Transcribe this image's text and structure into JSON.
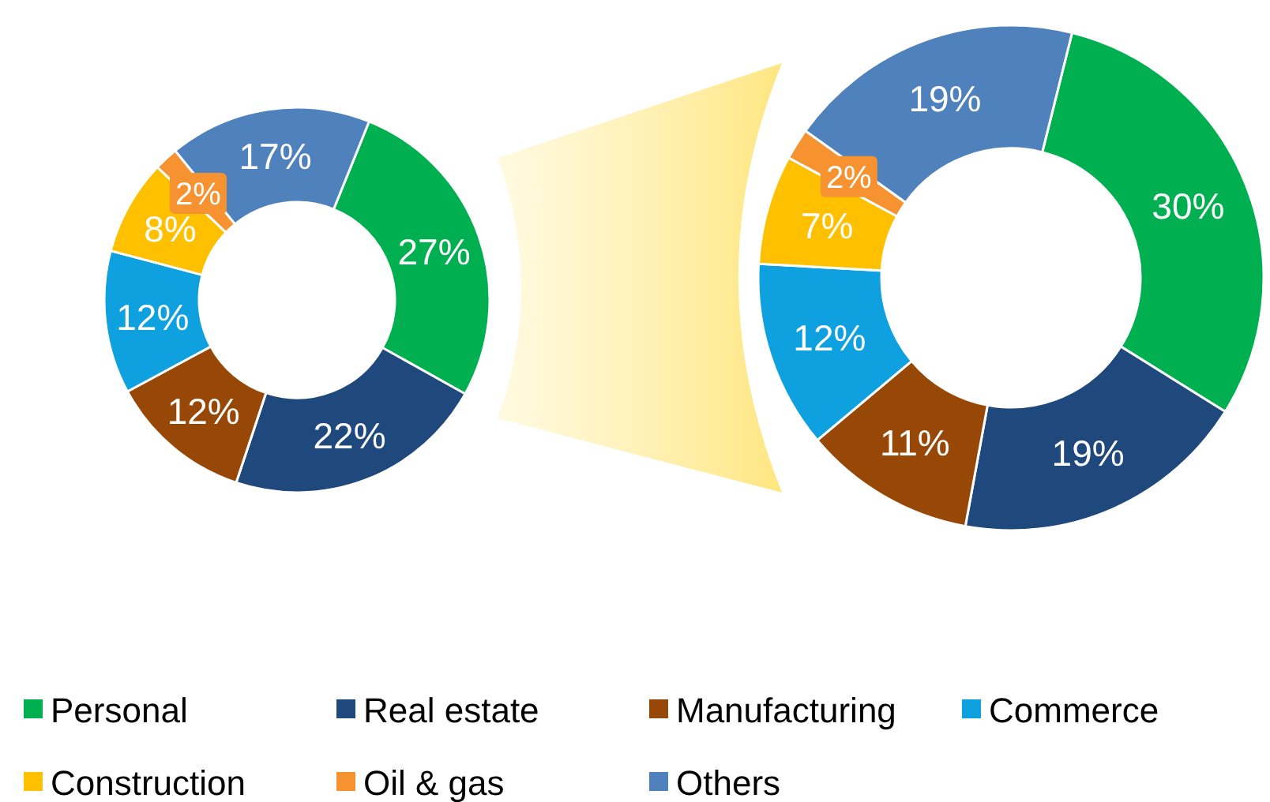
{
  "chart_data": [
    {
      "type": "donut",
      "categories": [
        "Personal",
        "Real estate",
        "Manufacturing",
        "Commerce",
        "Construction",
        "Oil & gas",
        "Others"
      ],
      "values": [
        27,
        22,
        12,
        12,
        8,
        2,
        17
      ],
      "value_labels": [
        "27%",
        "22%",
        "12%",
        "12%",
        "8%",
        "2%",
        "17%"
      ],
      "colors": [
        "#00b050",
        "#1f497d",
        "#974706",
        "#0fa0e0",
        "#ffc000",
        "#f79230",
        "#4f81bd"
      ],
      "legend": "bottom"
    },
    {
      "type": "donut",
      "categories": [
        null,
        null,
        null,
        null,
        null,
        null,
        null
      ],
      "values": [
        30,
        19,
        11,
        12,
        7,
        2,
        19
      ],
      "value_labels": [
        "30%",
        "19%",
        "11%",
        "12%",
        "7%",
        "2%",
        "19%"
      ],
      "colors": [
        "#00b050",
        "#1f497d",
        "#974706",
        "#0fa0e0",
        "#ffc000",
        "#f79230",
        "#4f81bd"
      ]
    }
  ]
}
